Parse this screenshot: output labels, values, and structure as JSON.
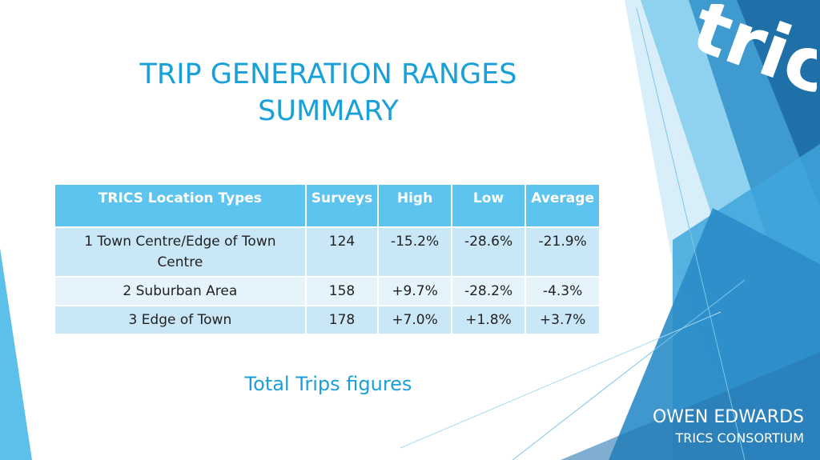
{
  "slide": {
    "title_line1": "TRIP GENERATION RANGES",
    "title_line2": "SUMMARY",
    "subtitle": "Total Trips figures"
  },
  "table": {
    "headers": [
      "TRICS Location Types",
      "Surveys",
      "High",
      "Low",
      "Average"
    ],
    "rows": [
      {
        "type": "1 Town Centre/Edge of Town Centre",
        "surveys": "124",
        "high": "-15.2%",
        "low": "-28.6%",
        "average": "-21.9%"
      },
      {
        "type": "2 Suburban Area",
        "surveys": "158",
        "high": "+9.7%",
        "low": "-28.2%",
        "average": "-4.3%"
      },
      {
        "type": "3 Edge of Town",
        "surveys": "178",
        "high": "+7.0%",
        "low": "+1.8%",
        "average": "+3.7%"
      }
    ]
  },
  "author": {
    "name": "OWEN EDWARDS",
    "org": "TRICS CONSORTIUM"
  },
  "logo": {
    "text": "trics"
  },
  "colors": {
    "accent": "#1aa0d8",
    "header_bg": "#5cc4ef",
    "row_odd": "#c9e7f7",
    "row_even": "#e5f3fb",
    "panel_dark": "#2a78b0",
    "panel_light": "#5cc0ea"
  }
}
